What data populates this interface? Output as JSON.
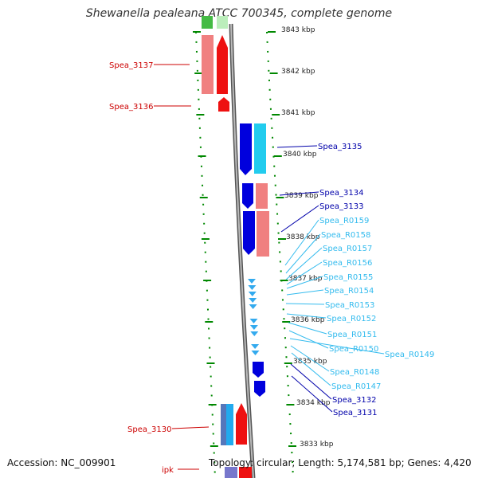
{
  "title": "Shewanella pealeana ATCC 700345, complete genome",
  "footer": {
    "accession": "Accession: NC_009901",
    "topology": "Topology: circular; Length: 5,174,581 bp; Genes: 4,420"
  },
  "scale_ticks": [
    "3843 kbp",
    "3842 kbp",
    "3841 kbp",
    "3840 kbp",
    "3839 kbp",
    "3838 kbp",
    "3837 kbp",
    "3836 kbp",
    "3835 kbp",
    "3834 kbp",
    "3833 kbp"
  ],
  "left_labels": [
    "Spea_3137",
    "Spea_3136",
    "Spea_3130",
    "ipk"
  ],
  "right_labels": [
    "Spea_3135",
    "Spea_3134",
    "Spea_3133",
    "Spea_R0159",
    "Spea_R0158",
    "Spea_R0157",
    "Spea_R0156",
    "Spea_R0155",
    "Spea_R0154",
    "Spea_R0153",
    "Spea_R0152",
    "Spea_R0151",
    "Spea_R0150",
    "Spea_R0149",
    "Spea_R0148",
    "Spea_R0147",
    "Spea_3132",
    "Spea_3131"
  ],
  "colors": {
    "left_label": "#cc0000",
    "right_label_gene": "#0000aa",
    "right_label_rna": "#33bbee",
    "forward_gene": "#ee1111",
    "forward_gene_light": "#f08080",
    "reverse_gene": "#0000dd",
    "reverse_gene_cyan": "#22ccee",
    "trna": "#33aaee",
    "backbone": "#888888",
    "dotted_ring": "#008800"
  }
}
